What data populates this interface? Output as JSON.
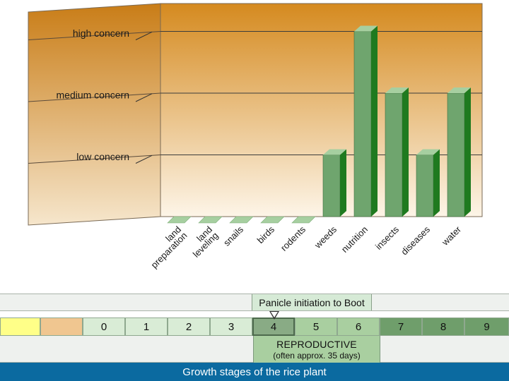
{
  "chart_data": {
    "type": "bar",
    "title": "",
    "xlabel": "",
    "ylabel": "",
    "levels": [
      "low concern",
      "medium concern",
      "high concern"
    ],
    "ylim": [
      0,
      3
    ],
    "categories": [
      "land preparation",
      "land leveling",
      "snails",
      "birds",
      "rodents",
      "weeds",
      "nutrition",
      "insects",
      "diseases",
      "water"
    ],
    "category_lines": [
      [
        "land",
        "preparation"
      ],
      [
        "land",
        "leveling"
      ],
      [
        "snails"
      ],
      [
        "birds"
      ],
      [
        "rodents"
      ],
      [
        "weeds"
      ],
      [
        "nutrition"
      ],
      [
        "insects"
      ],
      [
        "diseases"
      ],
      [
        "water"
      ]
    ],
    "values": [
      0,
      0,
      0,
      0,
      0,
      1,
      3,
      2,
      1,
      2
    ],
    "colors": {
      "wall_top": "#d58a1f",
      "wall_bottom": "#fdf5e8",
      "bar_front": "#6fa56e",
      "bar_side": "#1f7a1f",
      "bar_top": "#a6cfa0"
    }
  },
  "timeline": {
    "phase_label": "Panicle initiation to Boot",
    "stages": [
      {
        "label": "",
        "color": "#ffff88"
      },
      {
        "label": "",
        "color": "#f0c690"
      },
      {
        "label": "0",
        "color": "#d9ecd6"
      },
      {
        "label": "1",
        "color": "#d9ecd6"
      },
      {
        "label": "2",
        "color": "#d9ecd6"
      },
      {
        "label": "3",
        "color": "#d9ecd6"
      },
      {
        "label": "4",
        "color": "#89ab85"
      },
      {
        "label": "5",
        "color": "#a9cfa0"
      },
      {
        "label": "6",
        "color": "#a9cfa0"
      },
      {
        "label": "7",
        "color": "#6f9e6b"
      },
      {
        "label": "8",
        "color": "#6f9e6b"
      },
      {
        "label": "9",
        "color": "#6f9e6b"
      }
    ],
    "phase_title": "REPRODUCTIVE",
    "phase_subtitle": "(often approx. 35 days)",
    "footer": "Growth stages of the rice plant"
  }
}
